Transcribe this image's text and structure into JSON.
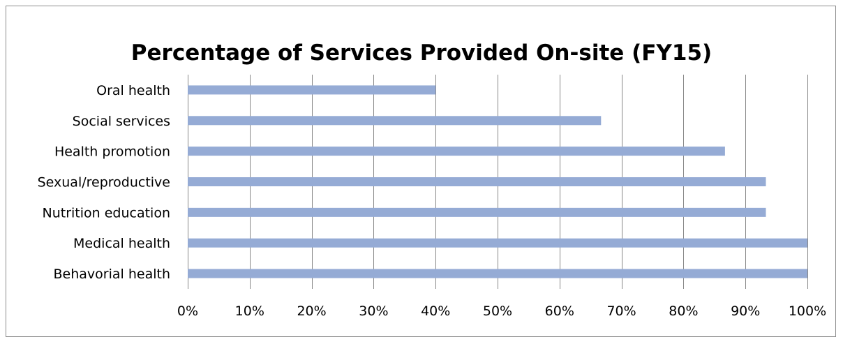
{
  "chart_data": {
    "type": "bar",
    "orientation": "horizontal",
    "title": "Percentage of Services Provided On-site (FY15)",
    "categories": [
      "Oral health",
      "Social services",
      "Health promotion",
      "Sexual/reproductive",
      "Nutrition education",
      "Medical health",
      "Behavorial health"
    ],
    "values": [
      40,
      66.7,
      86.7,
      93.3,
      93.3,
      100,
      100
    ],
    "xlim": [
      0,
      100
    ],
    "x_ticks": [
      "0%",
      "10%",
      "20%",
      "30%",
      "40%",
      "50%",
      "60%",
      "70%",
      "80%",
      "90%",
      "100%"
    ],
    "xlabel": "",
    "ylabel": "",
    "grid": "vertical",
    "legend": "none",
    "bar_color": "#95abd5",
    "grid_color": "#868686",
    "border_color": "#8c8c8c"
  }
}
